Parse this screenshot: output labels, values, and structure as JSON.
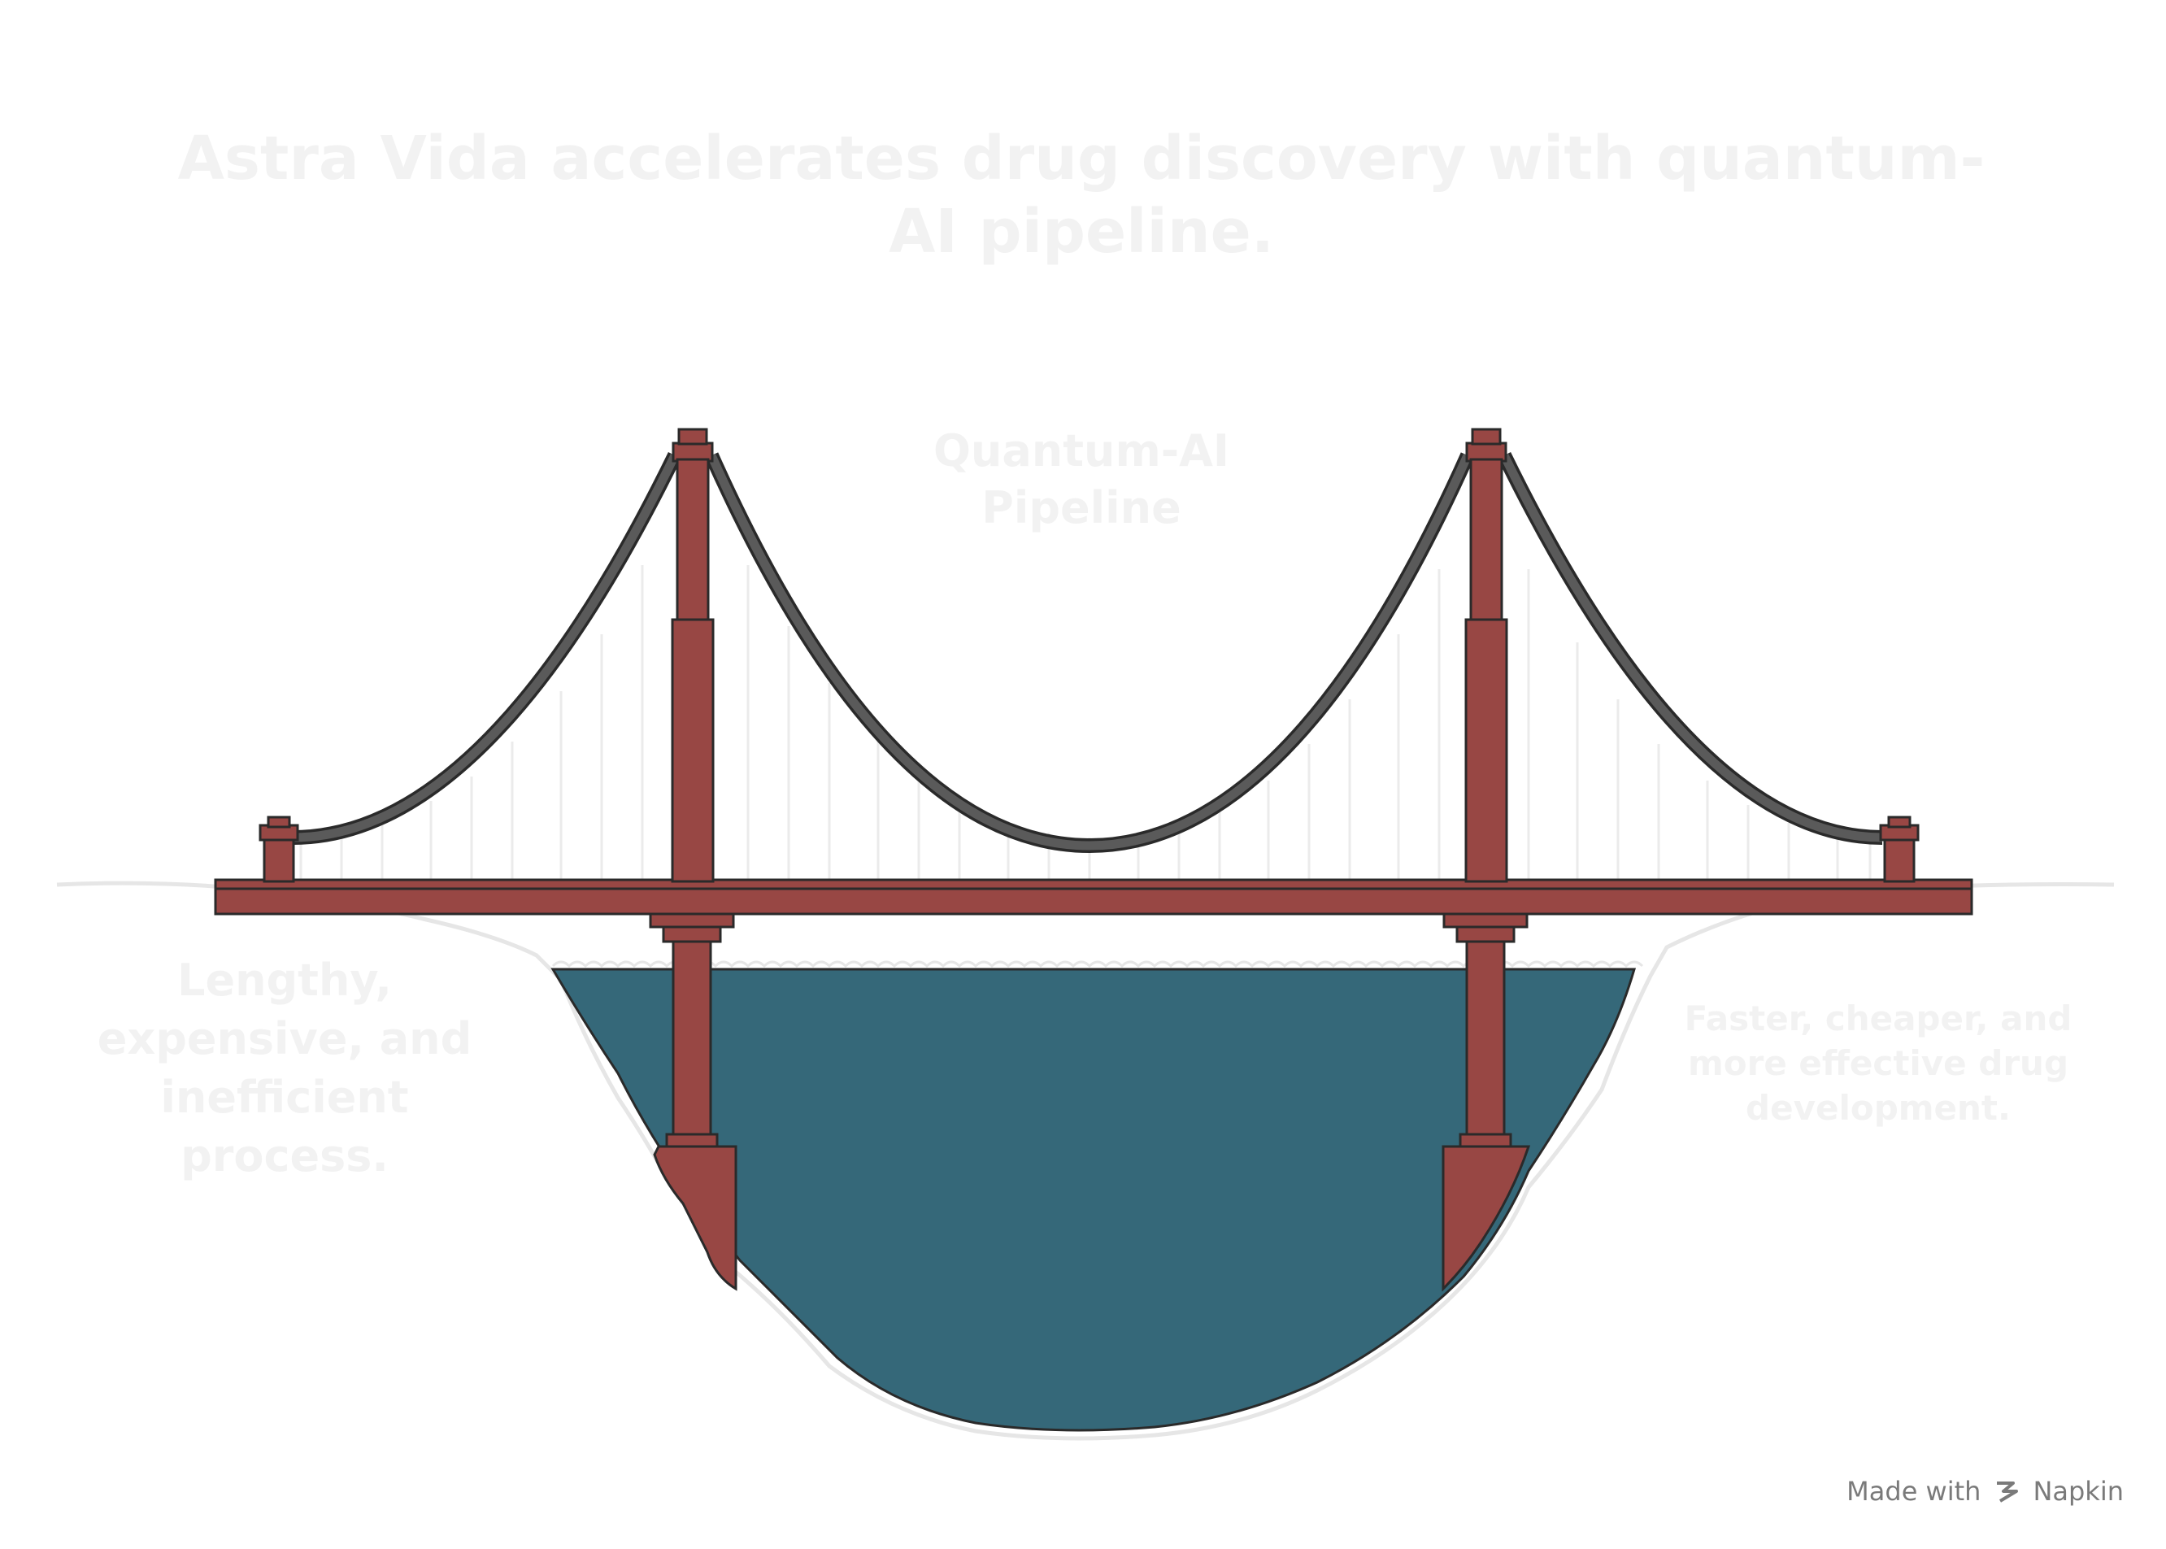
{
  "title": "Astra Vida accelerates drug discovery with quantum-AI pipeline.",
  "bridge": {
    "label": "Quantum-AI Pipeline",
    "tower_color": "#984744",
    "cable_color": "#4a4a4a",
    "water_color": "#356879"
  },
  "left_side": {
    "label": "Lengthy, expensive, and inefficient process."
  },
  "right_side": {
    "label": "Faster, cheaper, and more effective drug development."
  },
  "watermark": {
    "prefix": "Made with",
    "brand": "Napkin",
    "icon": "napkin-logo-icon"
  }
}
